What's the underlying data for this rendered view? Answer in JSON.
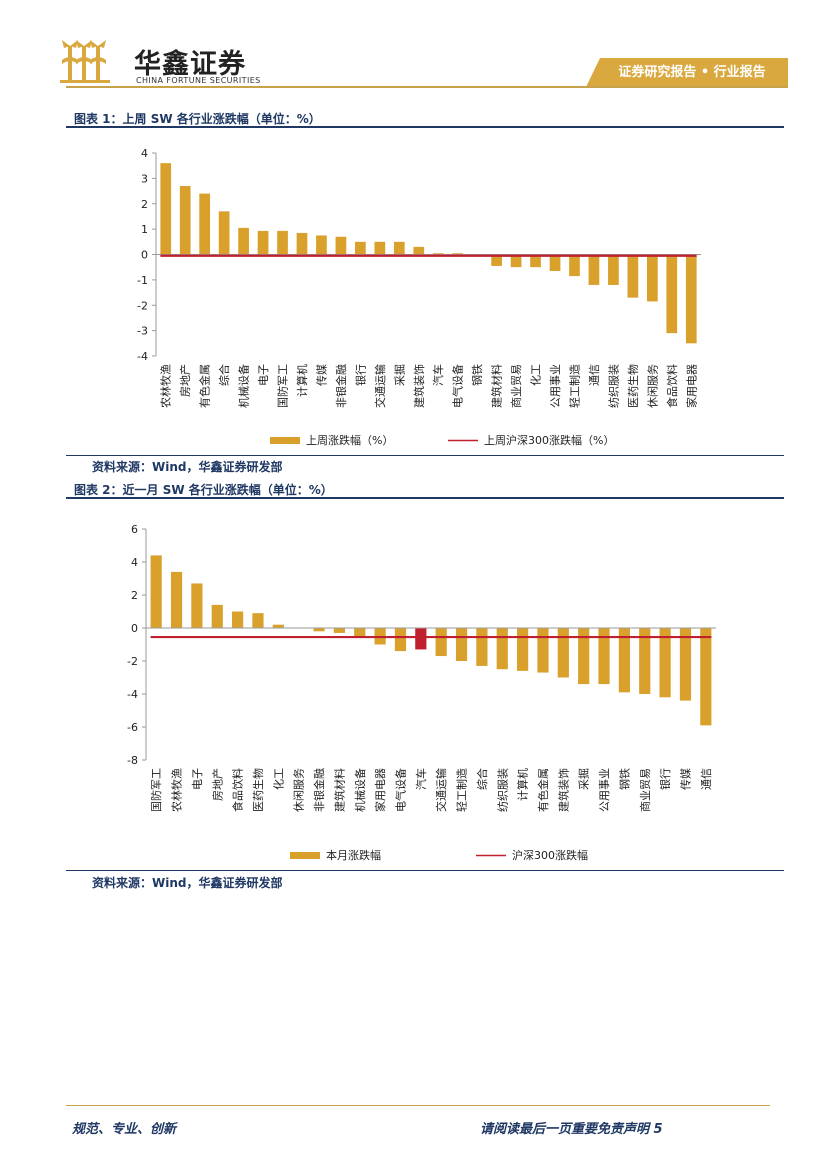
{
  "header": {
    "logo_cn": "华鑫证券",
    "logo_en": "CHINA FORTUNE SECURITIES",
    "tag": "证券研究报告 • 行业报告"
  },
  "figures": [
    {
      "title": "图表 1：上周 SW 各行业涨跌幅（单位：%）",
      "source": "资料来源：Wind，华鑫证券研发部"
    },
    {
      "title": "图表 2：近一月 SW 各行业涨跌幅（单位：%）",
      "source": "资料来源：Wind，华鑫证券研发部"
    }
  ],
  "footer": {
    "left": "规范、专业、创新",
    "right": "请阅读最后一页重要免责声明 5"
  },
  "colors": {
    "bar": "#d9a12c",
    "highlight_bar": "#c0202e",
    "benchmark_line": "#c0202e",
    "brand_gold": "#d9a83e",
    "brand_navy": "#1f3864"
  },
  "chart_data": [
    {
      "type": "bar",
      "title": "上周 SW 各行业涨跌幅（单位：%）",
      "categories": [
        "农林牧渔",
        "房地产",
        "有色金属",
        "综合",
        "机械设备",
        "电子",
        "国防军工",
        "计算机",
        "传媒",
        "非银金融",
        "银行",
        "交通运输",
        "采掘",
        "建筑装饰",
        "汽车",
        "电气设备",
        "钢铁",
        "建筑材料",
        "商业贸易",
        "化工",
        "公用事业",
        "轻工制造",
        "通信",
        "纺织服装",
        "医药生物",
        "休闲服务",
        "食品饮料",
        "家用电器"
      ],
      "series": [
        {
          "name": "上周涨跌幅（%）",
          "kind": "bar",
          "values": [
            3.6,
            2.7,
            2.4,
            1.7,
            1.05,
            0.93,
            0.93,
            0.85,
            0.75,
            0.7,
            0.5,
            0.5,
            0.5,
            0.3,
            0.05,
            0.05,
            0.0,
            -0.45,
            -0.5,
            -0.5,
            -0.65,
            -0.85,
            -1.2,
            -1.2,
            -1.7,
            -1.85,
            -3.1,
            -3.5
          ]
        },
        {
          "name": "上周沪深300涨跌幅（%）",
          "kind": "line",
          "value": -0.05
        }
      ],
      "ylim": [
        -4,
        4
      ],
      "yticks": [
        4,
        3,
        2,
        1,
        0,
        -1,
        -2,
        -3,
        -4
      ],
      "legend": [
        "上周涨跌幅（%）",
        "上周沪深300涨跌幅（%）"
      ],
      "highlight_index": null
    },
    {
      "type": "bar",
      "title": "近一月 SW 各行业涨跌幅（单位：%）",
      "categories": [
        "国防军工",
        "农林牧渔",
        "电子",
        "房地产",
        "食品饮料",
        "医药生物",
        "化工",
        "休闲服务",
        "非银金融",
        "建筑材料",
        "机械设备",
        "家用电器",
        "电气设备",
        "汽车",
        "交通运输",
        "轻工制造",
        "综合",
        "纺织服装",
        "计算机",
        "有色金属",
        "建筑装饰",
        "采掘",
        "公用事业",
        "钢铁",
        "商业贸易",
        "银行",
        "传媒",
        "通信"
      ],
      "series": [
        {
          "name": "本月涨跌幅",
          "kind": "bar",
          "values": [
            4.4,
            3.4,
            2.7,
            1.4,
            1.0,
            0.9,
            0.2,
            0.0,
            -0.2,
            -0.3,
            -0.6,
            -1.0,
            -1.4,
            -1.3,
            -1.7,
            -2.0,
            -2.3,
            -2.5,
            -2.6,
            -2.7,
            -3.0,
            -3.4,
            -3.4,
            -3.9,
            -4.0,
            -4.2,
            -4.4,
            -5.9
          ]
        },
        {
          "name": "沪深300涨跌幅",
          "kind": "line",
          "value": -0.55
        }
      ],
      "ylim": [
        -8,
        6
      ],
      "yticks": [
        6,
        4,
        2,
        0,
        -2,
        -4,
        -6,
        -8
      ],
      "legend": [
        "本月涨跌幅",
        "沪深300涨跌幅"
      ],
      "highlight_index": 13
    }
  ]
}
